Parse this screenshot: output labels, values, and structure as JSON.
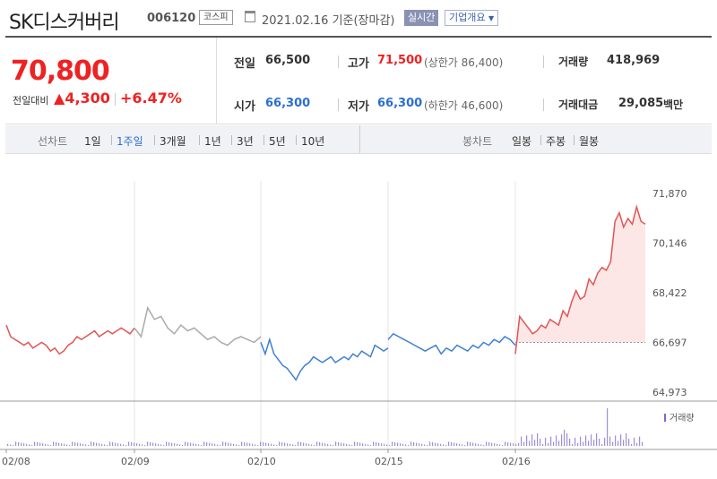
{
  "header": {
    "company_name": "SK디스커버리",
    "code": "006120",
    "market_badge": "코스피",
    "date": "2021.02.16 기준(장마감)",
    "realtime_label": "실시간",
    "overview_label": "기업개요",
    "icons": [
      "calendar-icon",
      "chevron-down-icon"
    ]
  },
  "price": {
    "current": "70,800",
    "change_label": "전일대비",
    "change_value": "4,300",
    "change_pct": "+6.47%",
    "up_color": "#e22222",
    "down_color": "#2b6fd1"
  },
  "stats": {
    "prev_label": "전일",
    "prev_value": "66,500",
    "high_label": "고가",
    "high_value": "71,500",
    "upper_limit": "(상한가 86,400)",
    "volume_label": "거래량",
    "volume_value": "418,969",
    "open_label": "시가",
    "open_value": "66,300",
    "low_label": "저가",
    "low_value": "66,300",
    "lower_limit": "(하한가 46,600)",
    "amount_label": "거래대금",
    "amount_value": "29,085",
    "amount_unit": "백만"
  },
  "tabs": {
    "line_label": "선차트",
    "line_items": [
      "1일",
      "1주일",
      "3개월",
      "1년",
      "3년",
      "5년",
      "10년"
    ],
    "line_active": 1,
    "candle_label": "봉차트",
    "candle_items": [
      "일봉",
      "주봉",
      "월봉"
    ]
  },
  "chart_data": {
    "type": "line",
    "y_ticks": [
      "71,870",
      "70,146",
      "68,422",
      "66,697",
      "64,973"
    ],
    "ylim": [
      64973,
      71870
    ],
    "reference_price": 66697,
    "x_labels": [
      "02/08",
      "02/09",
      "02/10",
      "02/15",
      "02/16"
    ],
    "volume_legend": "거래량",
    "segments": [
      {
        "day": "02/08",
        "color": "#e05555",
        "values": [
          67300,
          66900,
          66800,
          66700,
          66600,
          66700,
          66500,
          66600,
          66700,
          66600,
          66400,
          66500,
          66300,
          66400,
          66600,
          66700,
          66900,
          66800,
          66900,
          67000,
          67100,
          66900,
          67000,
          67100,
          67000,
          67100,
          67200,
          67100,
          67000,
          67200
        ]
      },
      {
        "day": "02/09",
        "color": "#aaaaaa",
        "values": [
          67200,
          66900,
          67900,
          67500,
          67600,
          67200,
          67000,
          67300,
          67100,
          67200,
          67000,
          66800,
          66900,
          66700,
          66600,
          66800,
          66900,
          66800,
          66700,
          66900
        ]
      },
      {
        "day": "02/10",
        "color": "#3f7fd1",
        "values": [
          66700,
          66300,
          66800,
          66300,
          66100,
          65900,
          65800,
          65600,
          65400,
          65700,
          65900,
          66000,
          66200,
          66100,
          66000,
          66100,
          66200,
          66000,
          66100,
          66200,
          66100,
          66300,
          66200,
          66400,
          66300,
          66200,
          66600,
          66500,
          66400,
          66500
        ]
      },
      {
        "day": "02/15",
        "color": "#3f7fd1",
        "values": [
          66800,
          67000,
          66900,
          66800,
          66700,
          66600,
          66500,
          66400,
          66500,
          66600,
          66300,
          66500,
          66400,
          66600,
          66500,
          66400,
          66600,
          66500,
          66700,
          66600,
          66800,
          66700,
          66900,
          66800,
          66600
        ]
      },
      {
        "day": "02/16",
        "color": "#e05555",
        "values": [
          66300,
          67600,
          67400,
          67200,
          67000,
          67100,
          67300,
          67200,
          67500,
          67400,
          67300,
          67800,
          67600,
          68100,
          68500,
          68200,
          68300,
          68900,
          68700,
          69100,
          69300,
          69200,
          69500,
          70900,
          71200,
          70700,
          71000,
          70800,
          71400,
          70900,
          70800
        ]
      }
    ]
  }
}
